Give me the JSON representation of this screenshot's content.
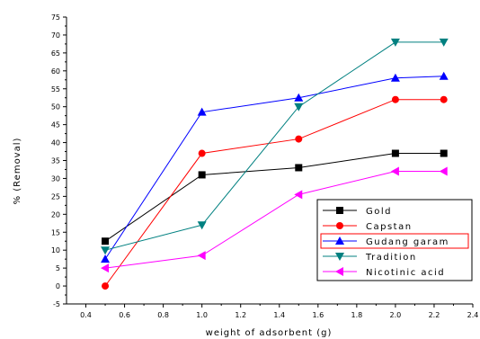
{
  "chart_data": {
    "type": "line",
    "title": "",
    "xlabel": "weight of adsorbent (g)",
    "ylabel": "% (Removal)",
    "xlim": [
      0.3,
      2.4
    ],
    "ylim": [
      -5,
      75
    ],
    "x_ticks": [
      0.4,
      0.6,
      0.8,
      1.0,
      1.2,
      1.4,
      1.6,
      1.8,
      2.0,
      2.2,
      2.4
    ],
    "y_ticks": [
      -5,
      0,
      5,
      10,
      15,
      20,
      25,
      30,
      35,
      40,
      45,
      50,
      55,
      60,
      65,
      70,
      75
    ],
    "grid": false,
    "legend_position": "bottom-right",
    "series": [
      {
        "name": "Gold",
        "color": "#000000",
        "marker": "square",
        "x": [
          0.5,
          1.0,
          1.5,
          2.0,
          2.25
        ],
        "y": [
          12.5,
          31,
          33,
          37,
          37
        ]
      },
      {
        "name": "Capstan",
        "color": "#ff0000",
        "marker": "circle",
        "x": [
          0.5,
          1.0,
          1.5,
          2.0,
          2.25
        ],
        "y": [
          0,
          37,
          41,
          52,
          52
        ]
      },
      {
        "name": "Gudang garam",
        "color": "#0000ff",
        "marker": "triangle-up",
        "x": [
          0.5,
          1.0,
          1.5,
          2.0,
          2.25
        ],
        "y": [
          7.5,
          48.5,
          52.5,
          58,
          58.5
        ]
      },
      {
        "name": "Tradition",
        "color": "#008080",
        "marker": "triangle-down",
        "x": [
          0.5,
          1.0,
          1.5,
          2.0,
          2.25
        ],
        "y": [
          10,
          17,
          50,
          68,
          68
        ]
      },
      {
        "name": "Nicotinic acid",
        "color": "#ff00ff",
        "marker": "triangle-left",
        "x": [
          0.5,
          1.0,
          1.5,
          2.0,
          2.25
        ],
        "y": [
          5,
          8.5,
          25.5,
          32,
          32
        ]
      }
    ]
  }
}
